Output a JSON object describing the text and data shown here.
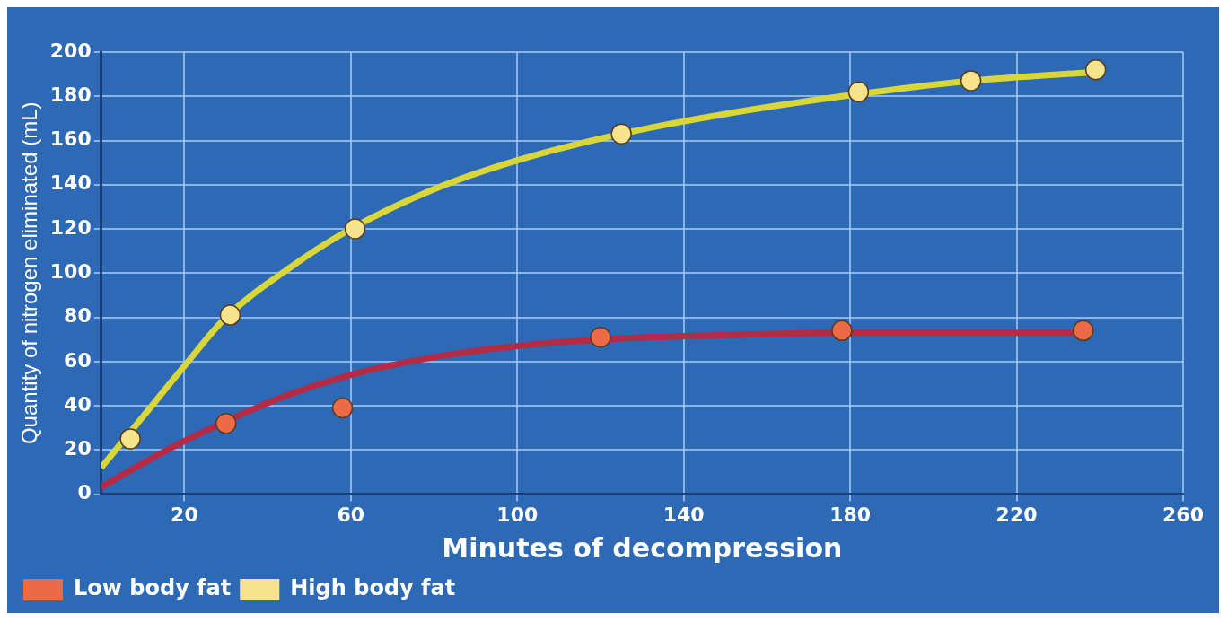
{
  "chart_data": {
    "type": "scatter",
    "xlabel": "Minutes of decompression",
    "ylabel": "Quantity of nitrogen eliminated (mL)",
    "xlim": [
      0,
      260
    ],
    "xticks": [
      20,
      60,
      100,
      140,
      180,
      220,
      260
    ],
    "ylim": [
      0,
      200
    ],
    "yticks": [
      0,
      20,
      40,
      60,
      80,
      100,
      120,
      140,
      160,
      180,
      200
    ],
    "grid": true,
    "legend": "bottom left",
    "series": [
      {
        "type": "line",
        "color": "#b52a45",
        "marker": "none",
        "x": [
          0,
          10,
          20,
          30,
          45,
          60,
          80,
          100,
          120,
          150,
          180,
          210,
          236
        ],
        "values": [
          3,
          14,
          24,
          33,
          45,
          54,
          62,
          67,
          70,
          72,
          73,
          73,
          73
        ]
      },
      {
        "type": "line",
        "color": "#d9d63a",
        "marker": "none",
        "x": [
          0,
          10,
          20,
          30,
          45,
          60,
          80,
          100,
          125,
          150,
          182,
          209,
          239
        ],
        "values": [
          12,
          35,
          58,
          80,
          102,
          120,
          138,
          151,
          163,
          172,
          181,
          187,
          191
        ]
      },
      {
        "type": "scatter",
        "name": "Low body fat",
        "color": "#ec6a45",
        "marker": "circle",
        "x": [
          30,
          58,
          120,
          178,
          236
        ],
        "values": [
          32,
          39,
          71,
          74,
          74
        ]
      },
      {
        "type": "scatter",
        "name": "High body fat",
        "color": "#f6e48c",
        "marker": "circle",
        "x": [
          7,
          31,
          61,
          125,
          182,
          209,
          239
        ],
        "values": [
          25,
          81,
          120,
          163,
          182,
          187,
          192
        ]
      }
    ]
  }
}
